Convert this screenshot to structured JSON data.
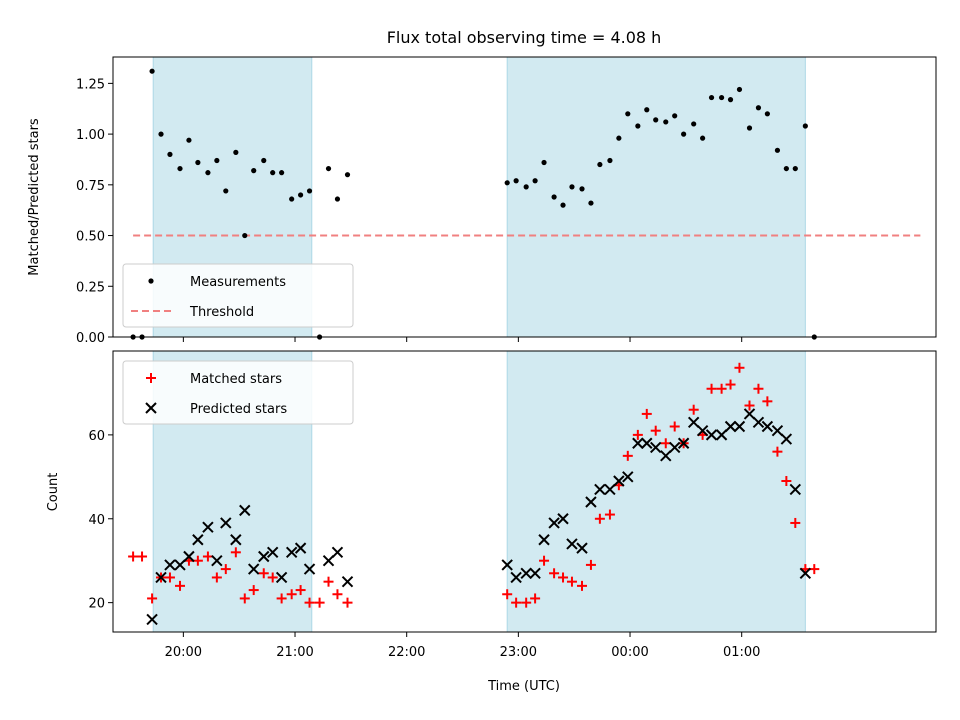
{
  "title": "Flux total observing time = 4.08 h",
  "colors": {
    "shade": "#add8e6",
    "threshold": "#f08080",
    "matched": "#ff0000",
    "predicted": "#000000",
    "measurement": "#000000"
  },
  "chart_data": [
    {
      "type": "scatter",
      "panel": "top",
      "ylabel": "Matched/Predicted stars",
      "ylim": [
        0,
        1.38
      ],
      "xlim": [
        19.37,
        26.74
      ],
      "yticks": [
        "0.00",
        "0.25",
        "0.50",
        "0.75",
        "1.00",
        "1.25"
      ],
      "shaded_intervals": [
        [
          19.73,
          21.15
        ],
        [
          22.9,
          25.57
        ]
      ],
      "threshold": {
        "y": 0.5,
        "x_range": [
          19.55,
          26.6
        ]
      },
      "legend": {
        "position": "lower-left",
        "entries": [
          "Measurements",
          "Threshold"
        ]
      },
      "series": [
        {
          "name": "Measurements",
          "x": [
            19.55,
            19.63,
            19.72,
            19.8,
            19.88,
            19.97,
            20.05,
            20.13,
            20.22,
            20.3,
            20.38,
            20.47,
            20.55,
            20.63,
            20.72,
            20.8,
            20.88,
            20.97,
            21.05,
            21.13,
            21.22,
            21.3,
            21.38,
            21.47,
            22.9,
            22.98,
            23.07,
            23.15,
            23.23,
            23.32,
            23.4,
            23.48,
            23.57,
            23.65,
            23.73,
            23.82,
            23.9,
            23.98,
            24.07,
            24.15,
            24.23,
            24.32,
            24.4,
            24.48,
            24.57,
            24.65,
            24.73,
            24.82,
            24.9,
            24.98,
            25.07,
            25.15,
            25.23,
            25.32,
            25.4,
            25.48,
            25.57,
            25.65
          ],
          "y": [
            0,
            0,
            1.31,
            1,
            0.9,
            0.83,
            0.97,
            0.86,
            0.81,
            0.87,
            0.72,
            0.91,
            0.5,
            0.82,
            0.87,
            0.81,
            0.81,
            0.68,
            0.7,
            0.72,
            0,
            0.83,
            0.68,
            0.8,
            0.76,
            0.77,
            0.74,
            0.77,
            0.86,
            0.69,
            0.65,
            0.74,
            0.73,
            0.66,
            0.85,
            0.87,
            0.98,
            1.1,
            1.04,
            1.12,
            1.07,
            1.06,
            1.09,
            1,
            1.05,
            0.98,
            1.18,
            1.18,
            1.17,
            1.22,
            1.03,
            1.13,
            1.1,
            0.92,
            0.83,
            0.83,
            1.04,
            0
          ]
        }
      ]
    },
    {
      "type": "scatter",
      "panel": "bottom",
      "xlabel": "Time (UTC)",
      "ylabel": "Count",
      "ylim": [
        13,
        80
      ],
      "xlim": [
        19.37,
        26.74
      ],
      "yticks": [
        "20",
        "40",
        "60"
      ],
      "xticks": [
        {
          "x": 20,
          "label": "20:00"
        },
        {
          "x": 21,
          "label": "21:00"
        },
        {
          "x": 22,
          "label": "22:00"
        },
        {
          "x": 23,
          "label": "23:00"
        },
        {
          "x": 24,
          "label": "00:00"
        },
        {
          "x": 25,
          "label": "01:00"
        }
      ],
      "shaded_intervals": [
        [
          19.73,
          21.15
        ],
        [
          22.9,
          25.57
        ]
      ],
      "legend": {
        "position": "upper-left",
        "entries": [
          "Matched stars",
          "Predicted stars"
        ]
      },
      "series": [
        {
          "name": "Matched stars",
          "x": [
            19.55,
            19.63,
            19.72,
            19.8,
            19.88,
            19.97,
            20.05,
            20.13,
            20.22,
            20.3,
            20.38,
            20.47,
            20.55,
            20.63,
            20.72,
            20.8,
            20.88,
            20.97,
            21.05,
            21.13,
            21.22,
            21.3,
            21.38,
            21.47,
            22.9,
            22.98,
            23.07,
            23.15,
            23.23,
            23.32,
            23.4,
            23.48,
            23.57,
            23.65,
            23.73,
            23.82,
            23.9,
            23.98,
            24.07,
            24.15,
            24.23,
            24.32,
            24.4,
            24.48,
            24.57,
            24.65,
            24.73,
            24.82,
            24.9,
            24.98,
            25.07,
            25.15,
            25.23,
            25.32,
            25.4,
            25.48,
            25.57,
            25.65
          ],
          "y": [
            31,
            31,
            21,
            26,
            26,
            24,
            30,
            30,
            31,
            26,
            28,
            32,
            21,
            23,
            27,
            26,
            21,
            22,
            23,
            20,
            20,
            25,
            22,
            20,
            22,
            20,
            20,
            21,
            30,
            27,
            26,
            25,
            24,
            29,
            40,
            41,
            48,
            55,
            60,
            65,
            61,
            58,
            62,
            58,
            66,
            60,
            71,
            71,
            72,
            76,
            67,
            71,
            68,
            56,
            49,
            39,
            28,
            28
          ]
        },
        {
          "name": "Predicted stars",
          "x": [
            19.72,
            19.8,
            19.88,
            19.97,
            20.05,
            20.13,
            20.22,
            20.3,
            20.38,
            20.47,
            20.55,
            20.63,
            20.72,
            20.8,
            20.88,
            20.97,
            21.05,
            21.13,
            21.3,
            21.38,
            21.47,
            22.9,
            22.98,
            23.07,
            23.15,
            23.23,
            23.32,
            23.4,
            23.48,
            23.57,
            23.65,
            23.73,
            23.82,
            23.9,
            23.98,
            24.07,
            24.15,
            24.23,
            24.32,
            24.4,
            24.48,
            24.57,
            24.65,
            24.73,
            24.82,
            24.9,
            24.98,
            25.07,
            25.15,
            25.23,
            25.32,
            25.4,
            25.48,
            25.57
          ],
          "y": [
            16,
            26,
            29,
            29,
            31,
            35,
            38,
            30,
            39,
            35,
            42,
            28,
            31,
            32,
            26,
            32,
            33,
            28,
            30,
            32,
            25,
            29,
            26,
            27,
            27,
            35,
            39,
            40,
            34,
            33,
            44,
            47,
            47,
            49,
            50,
            58,
            58,
            57,
            55,
            57,
            58,
            63,
            61,
            60,
            60,
            62,
            62,
            65,
            63,
            62,
            61,
            59,
            47,
            27
          ]
        }
      ]
    }
  ]
}
